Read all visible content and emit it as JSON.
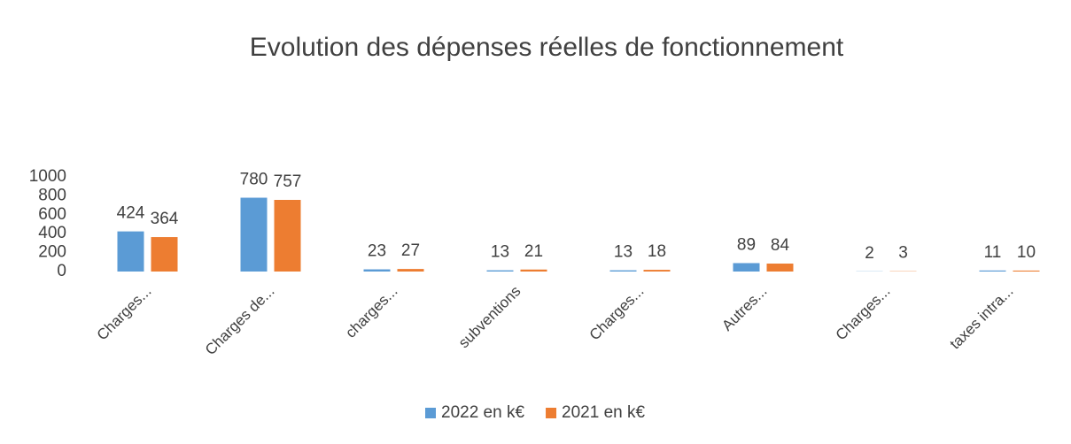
{
  "chart_data": {
    "type": "bar",
    "title": "Evolution des dépenses réelles de fonctionnement",
    "categories": [
      "Charges...",
      "Charges de...",
      "charges...",
      "subventions",
      "Charges...",
      "Autres...",
      "Charges...",
      "taxes intra..."
    ],
    "series": [
      {
        "name": "2022 en k€",
        "color": "#5b9bd5",
        "values": [
          424,
          780,
          23,
          13,
          13,
          89,
          2,
          11
        ]
      },
      {
        "name": "2021 en k€",
        "color": "#ed7d31",
        "values": [
          364,
          757,
          27,
          21,
          18,
          84,
          3,
          10
        ]
      }
    ],
    "ylim": [
      0,
      1000
    ],
    "yticks": [
      0,
      200,
      400,
      600,
      800,
      1000
    ],
    "grid": false,
    "legend": "bottom"
  }
}
